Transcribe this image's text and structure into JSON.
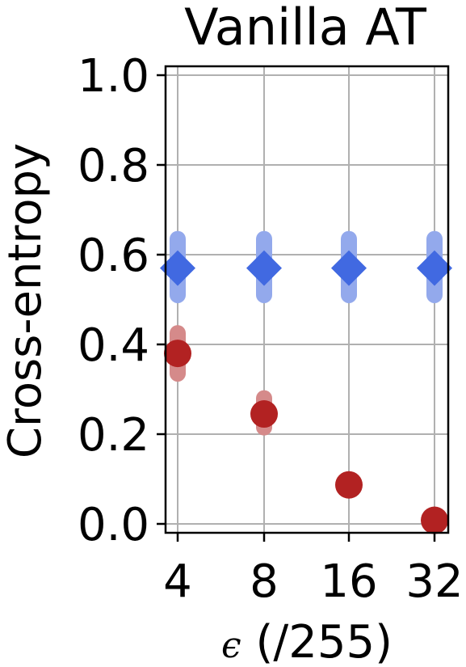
{
  "chart_data": {
    "type": "scatter",
    "title": "Vanilla AT",
    "xlabel_symbol": "ϵ",
    "xlabel_unit": "(/255)",
    "ylabel": "Cross-entropy",
    "categories": [
      "4",
      "8",
      "16",
      "32"
    ],
    "yticks": [
      "0.0",
      "0.2",
      "0.4",
      "0.6",
      "0.8",
      "1.0"
    ],
    "ylim": [
      -0.02,
      1.02
    ],
    "grid": true,
    "series": [
      {
        "marker": "diamond",
        "color": "#4169e1",
        "errorbar_color": "#93a9ec",
        "values": [
          0.57,
          0.57,
          0.57,
          0.57
        ],
        "err_low": [
          0.51,
          0.51,
          0.51,
          0.51
        ],
        "err_high": [
          0.635,
          0.635,
          0.635,
          0.635
        ]
      },
      {
        "marker": "circle",
        "color": "#b22222",
        "errorbar_color": "#d58a8a",
        "values": [
          0.38,
          0.245,
          0.087,
          0.008
        ],
        "err_low": [
          0.335,
          0.215,
          0.082,
          0.005
        ],
        "err_high": [
          0.425,
          0.28,
          0.092,
          0.011
        ]
      }
    ]
  }
}
